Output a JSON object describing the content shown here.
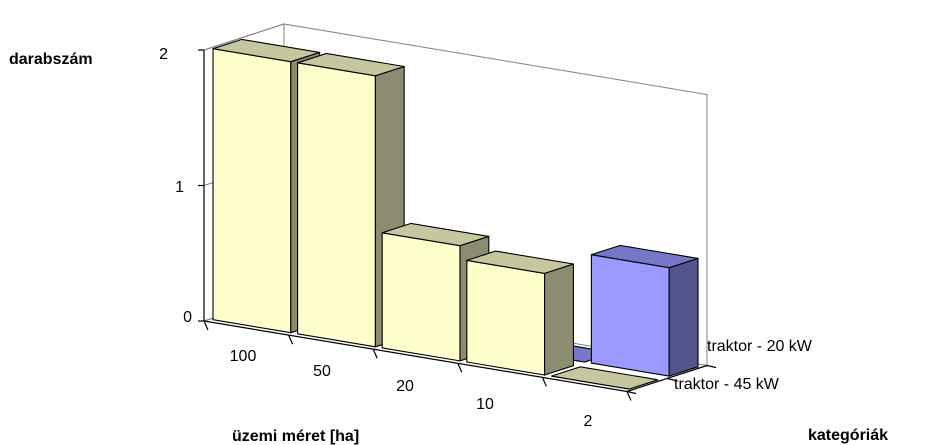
{
  "chart_data": {
    "type": "bar",
    "projection": "3d",
    "title": "",
    "ylabel": "darabszám",
    "xlabel": "üzemi méret [ha]",
    "zlabel": "kategóriák",
    "categories": [
      "100",
      "50",
      "20",
      "10",
      "2"
    ],
    "ylim": [
      0,
      2
    ],
    "yticks": [
      "0",
      "1",
      "2"
    ],
    "grid": false,
    "series": [
      {
        "name": "traktor - 45 kW",
        "values": [
          2,
          2,
          0.85,
          0.75,
          0
        ],
        "color": "#FFFFCC"
      },
      {
        "name": "traktor - 20 kW",
        "values": [
          0,
          0,
          0,
          0,
          0.8
        ],
        "color": "#9999FF"
      }
    ]
  }
}
